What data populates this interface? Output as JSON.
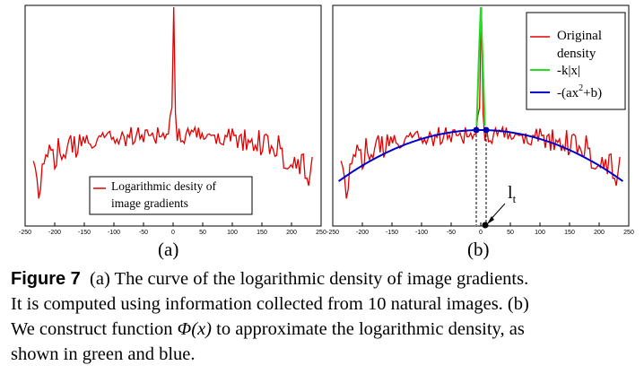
{
  "chart_data": [
    {
      "type": "line",
      "panel_label": "(a)",
      "x_ticks": [
        -250,
        -200,
        -150,
        -100,
        -50,
        0,
        50,
        100,
        150,
        200,
        250
      ],
      "xlim": [
        -250,
        250
      ],
      "series": [
        {
          "name": "Logarithmic desity of image gradients",
          "color": "#e00000",
          "description": "noisy log-density curve: sharp spike at x=0, plateau near center, falling off at both ends"
        }
      ],
      "legend": {
        "lines": [
          "Logarithmic desity of",
          "image gradients"
        ],
        "placement": "bottom-right"
      }
    },
    {
      "type": "line",
      "panel_label": "(b)",
      "x_ticks": [
        -250,
        -200,
        -150,
        -100,
        -50,
        0,
        50,
        100,
        150,
        200,
        250
      ],
      "xlim": [
        -250,
        250
      ],
      "series": [
        {
          "name": "Original density",
          "color": "#e00000"
        },
        {
          "name": "-k|x|",
          "color": "#22dd22"
        },
        {
          "name": "-(ax2+b)",
          "color": "#0000cc"
        }
      ],
      "legend": {
        "entries": [
          "Original",
          "density",
          "-k|x|",
          "-(ax",
          "2",
          "+b)"
        ],
        "placement": "top-right"
      },
      "annotation": {
        "label": "l",
        "subscript": "t"
      }
    }
  ],
  "caption": {
    "figure_label": "Figure 7",
    "line1": "(a) The curve of the logarithmic density of image gradients.",
    "line2": "It is computed using information collected from 10 natural images. (b)",
    "line3_pre": "We construct function ",
    "line3_phi": "Φ(x)",
    "line3_post": " to approximate the logarithmic density, as",
    "line4": "shown in green and blue."
  }
}
